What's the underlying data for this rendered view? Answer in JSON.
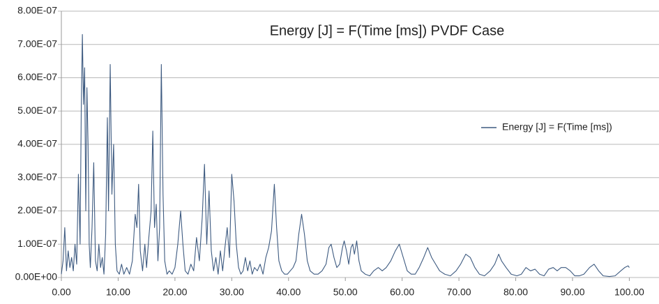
{
  "chart_data": {
    "type": "line",
    "title": "Energy [J] = F(Time [ms]) PVDF Case",
    "x": [
      0,
      0.3,
      0.6,
      0.9,
      1.2,
      1.5,
      1.8,
      2.1,
      2.4,
      2.7,
      3.0,
      3.3,
      3.5,
      3.7,
      3.9,
      4.1,
      4.3,
      4.5,
      4.7,
      4.9,
      5.1,
      5.4,
      5.7,
      6.0,
      6.3,
      6.6,
      6.9,
      7.2,
      7.5,
      7.8,
      8.1,
      8.3,
      8.6,
      8.9,
      9.2,
      9.5,
      9.8,
      10.2,
      10.6,
      11.0,
      11.5,
      12.0,
      12.5,
      13.0,
      13.3,
      13.6,
      13.9,
      14.3,
      14.7,
      15.0,
      15.4,
      15.8,
      16.1,
      16.4,
      16.7,
      17.0,
      17.3,
      17.6,
      17.9,
      18.2,
      18.6,
      19.0,
      19.5,
      20.0,
      20.5,
      21.0,
      21.4,
      21.8,
      22.3,
      22.8,
      23.3,
      23.8,
      24.3,
      24.8,
      25.2,
      25.6,
      26.0,
      26.4,
      26.8,
      27.2,
      27.6,
      28.0,
      28.4,
      28.8,
      29.2,
      29.6,
      30.0,
      30.4,
      30.8,
      31.2,
      31.6,
      32.0,
      32.4,
      32.8,
      33.2,
      33.6,
      34.0,
      34.5,
      35.0,
      35.5,
      36.0,
      36.5,
      37.0,
      37.5,
      37.9,
      38.3,
      38.8,
      39.3,
      39.8,
      40.3,
      40.8,
      41.3,
      41.8,
      42.3,
      42.8,
      43.3,
      43.8,
      44.5,
      45.2,
      45.9,
      46.6,
      47.1,
      47.5,
      48.0,
      48.5,
      49.0,
      49.5,
      49.8,
      50.2,
      50.6,
      51.0,
      51.3,
      51.6,
      52.0,
      52.4,
      52.8,
      53.5,
      54.3,
      55.0,
      55.8,
      56.5,
      57.2,
      58.0,
      58.8,
      59.5,
      60.2,
      60.9,
      61.6,
      62.3,
      63.0,
      63.8,
      64.5,
      65.2,
      65.9,
      66.6,
      67.5,
      68.5,
      69.5,
      70.3,
      71.2,
      72.0,
      72.8,
      73.6,
      74.5,
      75.5,
      76.3,
      77.0,
      77.5,
      78.3,
      79.2,
      80.2,
      81.0,
      81.8,
      82.6,
      83.4,
      84.2,
      85.0,
      85.8,
      86.6,
      87.3,
      88.0,
      88.8,
      89.6,
      90.4,
      91.2,
      92.0,
      93.0,
      93.8,
      94.6,
      95.4,
      96.5,
      97.5,
      98.5,
      99.2,
      99.8,
      100.0
    ],
    "series": [
      {
        "name": "Energy [J] = F(Time [ms])",
        "color": "#3d5a80",
        "values": [
          1e-08,
          5e-08,
          1.5e-07,
          2e-08,
          8e-08,
          3e-08,
          6e-08,
          2e-08,
          1e-07,
          4e-08,
          3.1e-07,
          1e-07,
          5e-07,
          7.3e-07,
          5.2e-07,
          6.3e-07,
          2e-07,
          5.7e-07,
          4e-07,
          1e-07,
          3e-08,
          1.5e-07,
          3.45e-07,
          5e-08,
          2e-08,
          1e-07,
          3e-08,
          6e-08,
          1e-08,
          1.3e-07,
          4.8e-07,
          2e-07,
          6.4e-07,
          2.5e-07,
          4e-07,
          1e-07,
          2e-08,
          1e-08,
          4e-08,
          1e-08,
          3e-08,
          1e-08,
          5e-08,
          1.9e-07,
          1.5e-07,
          2.8e-07,
          8e-08,
          2e-08,
          1e-07,
          3e-08,
          1.2e-07,
          2e-07,
          4.4e-07,
          1.5e-07,
          2.2e-07,
          5e-08,
          1.5e-07,
          6.4e-07,
          2.5e-07,
          5e-08,
          1e-08,
          2e-08,
          1e-08,
          3e-08,
          1e-07,
          2e-07,
          1e-07,
          2e-08,
          1e-08,
          4e-08,
          2e-08,
          1.2e-07,
          5e-08,
          1.8e-07,
          3.4e-07,
          1e-07,
          2.6e-07,
          8e-08,
          2e-08,
          6e-08,
          1e-08,
          8e-08,
          2e-08,
          9e-08,
          1.5e-07,
          6e-08,
          3.1e-07,
          2.3e-07,
          1e-07,
          3e-08,
          1e-08,
          2e-08,
          6e-08,
          2e-08,
          5e-08,
          1e-08,
          3e-08,
          2e-08,
          4e-08,
          1e-08,
          6e-08,
          9e-08,
          1.4e-07,
          2.8e-07,
          1.5e-07,
          5e-08,
          2e-08,
          1e-08,
          1e-08,
          2e-08,
          3e-08,
          5e-08,
          1.3e-07,
          1.9e-07,
          1.3e-07,
          5e-08,
          2e-08,
          1e-08,
          1e-08,
          2e-08,
          4e-08,
          9e-08,
          1e-07,
          6e-08,
          3e-08,
          4e-08,
          9e-08,
          1.1e-07,
          8e-08,
          4e-08,
          9e-08,
          1e-07,
          7e-08,
          1.1e-07,
          5e-08,
          2e-08,
          1e-08,
          5e-09,
          2e-08,
          3e-08,
          2e-08,
          3e-08,
          5e-08,
          8e-08,
          1e-07,
          6e-08,
          2e-08,
          1e-08,
          1e-08,
          3e-08,
          6e-08,
          9e-08,
          6e-08,
          4e-08,
          2e-08,
          1e-08,
          5e-09,
          2e-08,
          4e-08,
          7e-08,
          6e-08,
          3e-08,
          1e-08,
          5e-09,
          2e-08,
          4e-08,
          7e-08,
          5e-08,
          3e-08,
          1e-08,
          5e-09,
          1e-08,
          3e-08,
          2e-08,
          2.5e-08,
          1e-08,
          5e-09,
          2.5e-08,
          3e-08,
          2e-08,
          3e-08,
          3e-08,
          2e-08,
          5e-09,
          5e-09,
          1e-08,
          3e-08,
          4e-08,
          2e-08,
          5e-09,
          3e-09,
          5e-09,
          2e-08,
          3e-08,
          3.5e-08,
          3e-08
        ]
      }
    ],
    "xlim": [
      0,
      104
    ],
    "xticks": [
      {
        "value": 0,
        "label": "0.00"
      },
      {
        "value": 10,
        "label": "10.00"
      },
      {
        "value": 20,
        "label": "20.00"
      },
      {
        "value": 30,
        "label": "30.00"
      },
      {
        "value": 40,
        "label": "40.00"
      },
      {
        "value": 50,
        "label": "50.00"
      },
      {
        "value": 60,
        "label": "60.00"
      },
      {
        "value": 70,
        "label": "70.00"
      },
      {
        "value": 80,
        "label": "80.00"
      },
      {
        "value": 90,
        "label": "90.00"
      },
      {
        "value": 100,
        "label": "100.00"
      }
    ],
    "ylim": [
      0,
      8e-07
    ],
    "yticks": [
      {
        "value": 0,
        "label": "0.00E+00"
      },
      {
        "value": 1e-07,
        "label": "1.00E-07"
      },
      {
        "value": 2e-07,
        "label": "2.00E-07"
      },
      {
        "value": 3e-07,
        "label": "3.00E-07"
      },
      {
        "value": 4e-07,
        "label": "4.00E-07"
      },
      {
        "value": 5e-07,
        "label": "5.00E-07"
      },
      {
        "value": 6e-07,
        "label": "6.00E-07"
      },
      {
        "value": 7e-07,
        "label": "7.00E-07"
      },
      {
        "value": 8e-07,
        "label": "8.00E-07"
      }
    ],
    "grid": true,
    "legend": "right"
  }
}
